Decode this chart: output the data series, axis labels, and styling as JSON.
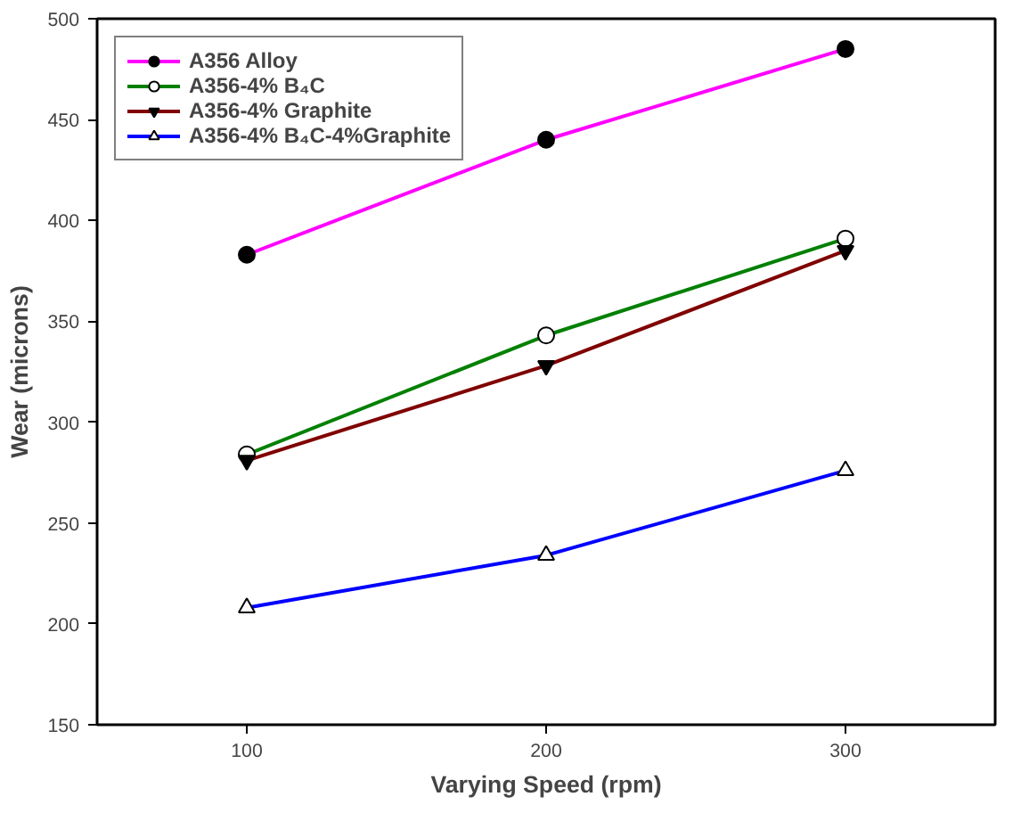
{
  "chart_data": {
    "type": "line",
    "xlabel": "Varying Speed (rpm)",
    "ylabel": "Wear (microns)",
    "x": [
      100,
      200,
      300
    ],
    "xlim": [
      50,
      350
    ],
    "xticks": [
      100,
      200,
      300
    ],
    "ylim": [
      150,
      500
    ],
    "yticks": [
      150,
      200,
      250,
      300,
      350,
      400,
      450,
      500
    ],
    "grid": false,
    "legend": "top left",
    "line_style": "solid",
    "series": [
      {
        "name": "A356 Alloy",
        "color": "#ff00ff",
        "marker": "circle",
        "values": [
          383,
          440,
          485
        ]
      },
      {
        "name": "A356-4% B₄C",
        "color": "#008000",
        "marker": "circle",
        "values": [
          284,
          343,
          391
        ]
      },
      {
        "name": "A356-4% Graphite",
        "color": "#800000",
        "marker": "triangle",
        "values": [
          281,
          328,
          385
        ]
      },
      {
        "name": "A356-4% B₄C-4%Graphite",
        "color": "#0000ff",
        "marker": "triangle",
        "values": [
          208,
          234,
          276
        ]
      }
    ]
  }
}
